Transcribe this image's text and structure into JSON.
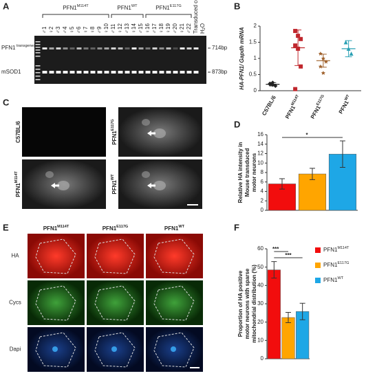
{
  "panel_letters": [
    "A",
    "B",
    "C",
    "D",
    "E",
    "F"
  ],
  "gel": {
    "groups": [
      "PFN1M114T",
      "PFN1WT",
      "PFN1E117G"
    ],
    "lanes": [
      "♂1",
      "♀2",
      "♂3",
      "♂4",
      "♀5",
      "♂6",
      "♀7",
      "♀8",
      "♂9",
      "♀10",
      "♂11",
      "♀12",
      "♂13",
      "♀14",
      "♂15",
      "♀16",
      "♂17",
      "♀18",
      "♀19",
      "♂20",
      "♀21",
      "♂22"
    ],
    "extra_lanes": [
      "Transduced cells",
      "H2O"
    ],
    "rows": [
      "PFN1 transgenes",
      "mSOD1"
    ],
    "sizes": [
      "714bp",
      "873bp"
    ]
  },
  "panel_c": {
    "labels": [
      "C57BL/6",
      "PFN1E117G",
      "PFN1M114T",
      "PFN1WT"
    ]
  },
  "panel_e": {
    "columns": [
      "PFN1M114T",
      "PFN1E117G",
      "PFN1WT"
    ],
    "rows": [
      "HA",
      "Cycs",
      "Dapi"
    ]
  },
  "chart_data": [
    {
      "type": "dot",
      "ylabel": "HA-PFN1/ Gapdh mRNA",
      "categories": [
        "C57BL/6",
        "PFN1M114T",
        "PFN1E117G",
        "PFN1WT"
      ],
      "points": [
        [
          0.2,
          0.25,
          0.15,
          0.22,
          0.18
        ],
        [
          1.85,
          1.7,
          1.6,
          1.4,
          1.3,
          0.75,
          0.05
        ],
        [
          1.15,
          1.0,
          0.9,
          0.75,
          0.55
        ],
        [
          1.5,
          1.3,
          1.15
        ]
      ],
      "means": [
        0.2,
        1.33,
        0.93,
        1.3
      ],
      "errors": [
        0.05,
        0.55,
        0.2,
        0.25
      ],
      "colors": [
        "#222222",
        "#c0272d",
        "#a0622d",
        "#2aa0b4"
      ],
      "markers": [
        "diamond",
        "square",
        "star",
        "triangle"
      ],
      "ylim": [
        0,
        2
      ],
      "yticks": [
        0,
        0.5,
        1,
        1.5,
        2
      ]
    },
    {
      "type": "bar",
      "ylabel": [
        "Relative HA intensity in",
        "Mouse transduced",
        "motor neurons"
      ],
      "values": [
        5.6,
        7.7,
        11.9
      ],
      "errors": [
        1.1,
        1.2,
        2.8
      ],
      "colors": [
        "#f20d0d",
        "#ffa500",
        "#1ea7e6"
      ],
      "ylim": [
        0,
        16
      ],
      "yticks": [
        0,
        2,
        4,
        6,
        8,
        10,
        12,
        14,
        16
      ],
      "significance": [
        {
          "from": 0,
          "to": 2,
          "label": "*"
        }
      ]
    },
    {
      "type": "bar",
      "ylabel": [
        "Proportion of HA positive",
        "motor neurons with sparse",
        "mitochondrial distribution (%)"
      ],
      "categories": [
        "PFN1M114T",
        "PFN1E117G",
        "PFN1WT"
      ],
      "values": [
        48.5,
        22.5,
        25.8
      ],
      "errors": [
        4.5,
        2.8,
        4.5
      ],
      "colors": [
        "#f20d0d",
        "#ffa500",
        "#1ea7e6"
      ],
      "ylim": [
        0,
        60
      ],
      "yticks": [
        0,
        10,
        20,
        30,
        40,
        50,
        60
      ],
      "legend": "right",
      "significance": [
        {
          "from": 0,
          "to": 1,
          "label": "***"
        },
        {
          "from": 0,
          "to": 2,
          "label": "***"
        }
      ]
    }
  ]
}
